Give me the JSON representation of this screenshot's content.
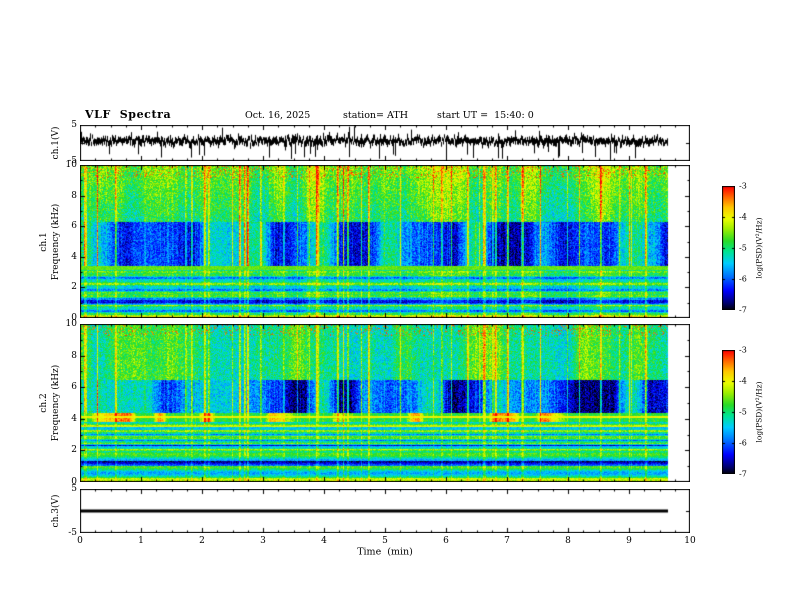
{
  "header": {
    "title": "VLF  Spectra",
    "date": "Oct. 16, 2025",
    "station": "station= ATH",
    "start_ut": "start UT =  15:40: 0"
  },
  "xaxis": {
    "label": "Time  (min)",
    "ticks": [
      0,
      1,
      2,
      3,
      4,
      5,
      6,
      7,
      8,
      9,
      10
    ],
    "range": [
      0,
      10
    ],
    "data_end_min": 9.65
  },
  "panels": [
    {
      "id": "ch1_volts",
      "ylabel": "ch.1(V)",
      "yticks": [
        5,
        -5
      ],
      "ylim": [
        -5,
        5
      ],
      "type": "line"
    },
    {
      "id": "ch1_spec",
      "ylabel_line1": "ch.1",
      "ylabel_line2": "Frequency (kHz)",
      "yticks": [
        0,
        2,
        4,
        6,
        8,
        10
      ],
      "ylim": [
        0,
        10
      ],
      "type": "heatmap"
    },
    {
      "id": "ch2_spec",
      "ylabel_line1": "ch.2",
      "ylabel_line2": "Frequency (kHz)",
      "yticks": [
        0,
        2,
        4,
        6,
        8,
        10
      ],
      "ylim": [
        0,
        10
      ],
      "type": "heatmap"
    },
    {
      "id": "ch3_volts",
      "ylabel": "ch.3(V)",
      "yticks": [
        5,
        -5
      ],
      "ylim": [
        -5,
        5
      ],
      "type": "line"
    }
  ],
  "colorbar": {
    "label": "log(PSD)(V²/Hz)",
    "ticks": [
      -3,
      -4,
      -5,
      -6,
      -7
    ],
    "value_range": [
      -7,
      -3
    ],
    "gradient_bottom_to_top": [
      {
        "t": 0.0,
        "c": "#000000"
      },
      {
        "t": 0.06,
        "c": "#00006e"
      },
      {
        "t": 0.16,
        "c": "#0000ff"
      },
      {
        "t": 0.28,
        "c": "#0078ff"
      },
      {
        "t": 0.38,
        "c": "#00cdff"
      },
      {
        "t": 0.48,
        "c": "#00e68c"
      },
      {
        "t": 0.56,
        "c": "#28dc28"
      },
      {
        "t": 0.66,
        "c": "#a0f000"
      },
      {
        "t": 0.74,
        "c": "#ebff00"
      },
      {
        "t": 0.83,
        "c": "#ffc800"
      },
      {
        "t": 0.91,
        "c": "#ff6e00"
      },
      {
        "t": 1.0,
        "c": "#ff0000"
      }
    ]
  },
  "chart_data": [
    {
      "type": "line",
      "panel": "ch.1(V) time series",
      "x_range_min": [
        0,
        10
      ],
      "x_data_end_min": 9.65,
      "y_range_V": [
        -5,
        5
      ],
      "summary": "Continuous broadband VLF voltage waveform centered near +0.5 V with dense impulsive sferic spikes, frequent downward excursions to -4.5/-5 V and occasional upward spikes to +3/+4 V."
    },
    {
      "type": "heatmap",
      "panel": "ch.1 spectrogram",
      "x_range_min": [
        0,
        10
      ],
      "x_data_end_min": 9.65,
      "y_range_kHz": [
        0,
        10
      ],
      "z_label": "log(PSD)(V²/Hz)",
      "z_range": [
        -7,
        -3
      ],
      "features": [
        "dense vertical sferic streaks (yellow/orange) strongest above 6 kHz",
        "red speckle near 9-10 kHz",
        "dark blue low-power patches between 3 and 6 kHz separating sferic columns",
        "bright green line near 3.3 kHz",
        "horizontal hum/harmonic banding (cyan/green/dark) below 3 kHz with dark band near 1 kHz"
      ]
    },
    {
      "type": "heatmap",
      "panel": "ch.2 spectrogram",
      "x_range_min": [
        0,
        10
      ],
      "x_data_end_min": 9.65,
      "y_range_kHz": [
        0,
        10
      ],
      "z_label": "log(PSD)(V²/Hz)",
      "z_range": [
        -7,
        -3
      ],
      "features": [
        "vertical sferic streaks above 6.5 kHz with red speckle near 10 kHz",
        "dark blue patches 4.4-6.5 kHz",
        "bright yellow-green blobs 3.8-4.4 kHz with orange interference line near 4.1 kHz",
        "strong horizontal interference striping 1.9-3.8 kHz including line near 3.55 kHz",
        "banded cyan/green structure below 2 kHz with dark band near 1.2 kHz"
      ]
    },
    {
      "type": "line",
      "panel": "ch.3(V) time series",
      "x_range_min": [
        0,
        10
      ],
      "x_data_end_min": 9.65,
      "y_range_V": [
        -5,
        5
      ],
      "summary": "Flat thick line at 0 V for the whole record (channel off / no signal)."
    }
  ]
}
